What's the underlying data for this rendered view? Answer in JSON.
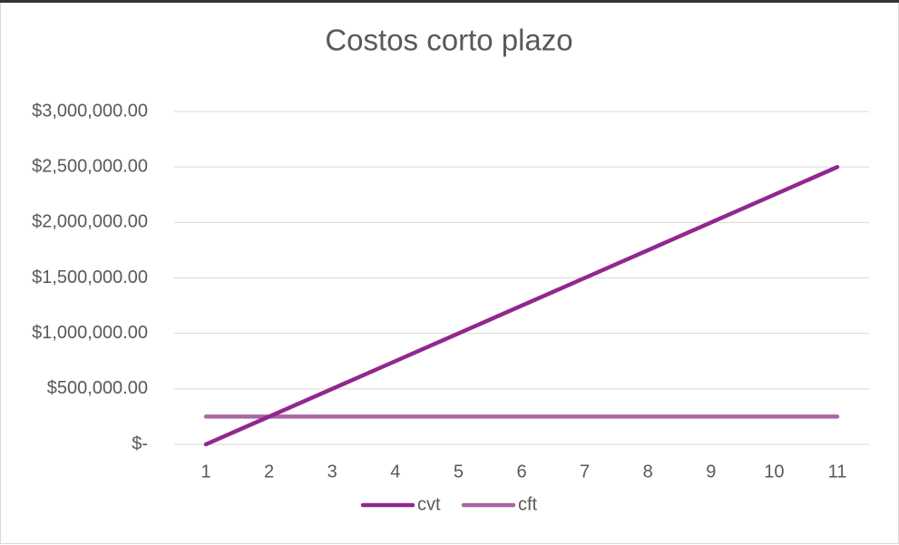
{
  "chart_data": {
    "type": "line",
    "title": "Costos corto plazo",
    "categories": [
      1,
      2,
      3,
      4,
      5,
      6,
      7,
      8,
      9,
      10,
      11
    ],
    "series": [
      {
        "name": "cvt",
        "color": "#92278f",
        "values": [
          0,
          250000,
          500000,
          750000,
          1000000,
          1250000,
          1500000,
          1750000,
          2000000,
          2250000,
          2500000
        ]
      },
      {
        "name": "cft",
        "color": "#a865a5",
        "values": [
          250000,
          250000,
          250000,
          250000,
          250000,
          250000,
          250000,
          250000,
          250000,
          250000,
          250000
        ]
      }
    ],
    "ylim": [
      0,
      3000000
    ],
    "yticks": [
      {
        "value": 0,
        "label": "$-"
      },
      {
        "value": 500000,
        "label": "$500,000.00"
      },
      {
        "value": 1000000,
        "label": "$1,000,000.00"
      },
      {
        "value": 1500000,
        "label": "$1,500,000.00"
      },
      {
        "value": 2000000,
        "label": "$2,000,000.00"
      },
      {
        "value": 2500000,
        "label": "$2,500,000.00"
      },
      {
        "value": 3000000,
        "label": "$3,000,000.00"
      }
    ],
    "grid": true,
    "legend": "bottom"
  }
}
